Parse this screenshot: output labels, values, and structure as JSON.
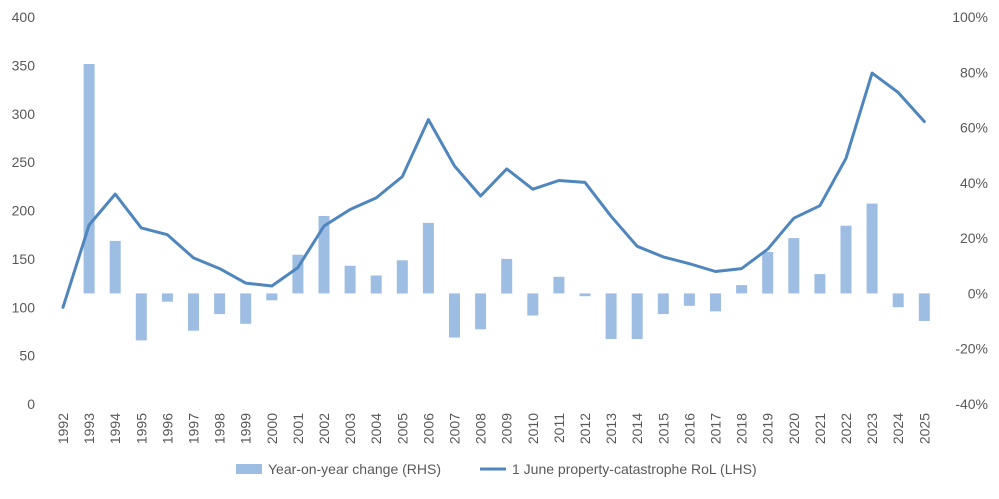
{
  "chart_data": {
    "type": "bar+line",
    "x": [
      "1992",
      "1993",
      "1994",
      "1995",
      "1996",
      "1997",
      "1998",
      "1999",
      "2000",
      "2001",
      "2002",
      "2003",
      "2004",
      "2005",
      "2006",
      "2007",
      "2008",
      "2009",
      "2010",
      "2011",
      "2012",
      "2013",
      "2014",
      "2015",
      "2016",
      "2017",
      "2018",
      "2019",
      "2020",
      "2021",
      "2022",
      "2023",
      "2024",
      "2025"
    ],
    "series": [
      {
        "name": "Year-on-year change (RHS)",
        "kind": "bar",
        "axis": "right",
        "color": "#9dbde3",
        "values": [
          null,
          0.83,
          0.19,
          -0.17,
          -0.03,
          -0.135,
          -0.075,
          -0.11,
          -0.025,
          0.14,
          0.28,
          0.1,
          0.065,
          0.12,
          0.255,
          -0.16,
          -0.13,
          0.125,
          -0.08,
          0.06,
          -0.01,
          -0.165,
          -0.165,
          -0.075,
          -0.045,
          -0.065,
          0.03,
          0.15,
          0.2,
          0.07,
          0.245,
          0.325,
          -0.05,
          -0.1
        ]
      },
      {
        "name": "1 June property-catastrophe RoL (LHS)",
        "kind": "line",
        "axis": "left",
        "color": "#4f86be",
        "values": [
          100,
          185,
          217,
          182,
          175,
          151,
          140,
          125,
          122,
          141,
          184,
          201,
          213,
          235,
          294,
          246,
          215,
          243,
          222,
          231,
          229,
          194,
          163,
          152,
          145,
          137,
          140,
          160,
          192,
          205,
          254,
          342,
          322,
          292
        ]
      }
    ],
    "y_left": {
      "min": 0,
      "max": 400,
      "ticks": [
        "0",
        "50",
        "100",
        "150",
        "200",
        "250",
        "300",
        "350",
        "400"
      ]
    },
    "y_right": {
      "min": -0.4,
      "max": 1.0,
      "ticks": [
        "-40%",
        "-20%",
        "0%",
        "20%",
        "40%",
        "60%",
        "80%",
        "100%"
      ]
    },
    "legend_position": "bottom",
    "grid": false
  }
}
